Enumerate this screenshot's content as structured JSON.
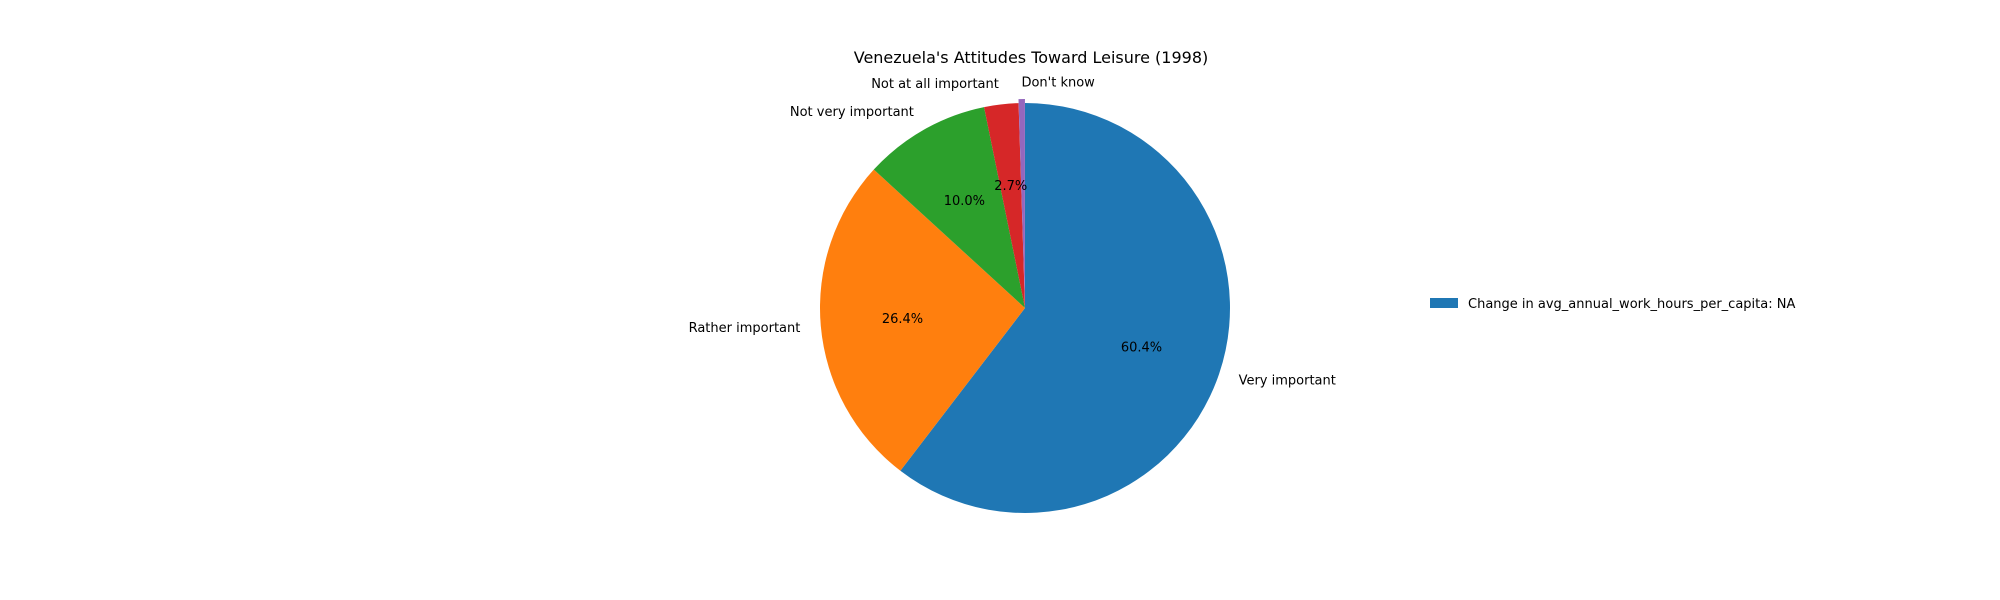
{
  "chart_data": {
    "type": "pie",
    "title": "Venezuela's Attitudes Toward Leisure (1998)",
    "categories": [
      "Very important",
      "Rather important",
      "Not very important",
      "Not at all important",
      "Don't know"
    ],
    "values": [
      60.4,
      26.4,
      10.0,
      2.7,
      0.5
    ],
    "percent_labels": [
      "60.4%",
      "26.4%",
      "10.0%",
      "2.7%",
      ""
    ],
    "colors": [
      "#1f77b4",
      "#ff7f0e",
      "#2ca02c",
      "#d62728",
      "#9467bd"
    ],
    "start_angle_deg": 90,
    "direction": "clockwise",
    "legend": {
      "placement": "right",
      "entries": [
        {
          "label": "Change in avg_annual_work_hours_per_capita: NA",
          "color": "#1f77b4"
        }
      ]
    }
  }
}
